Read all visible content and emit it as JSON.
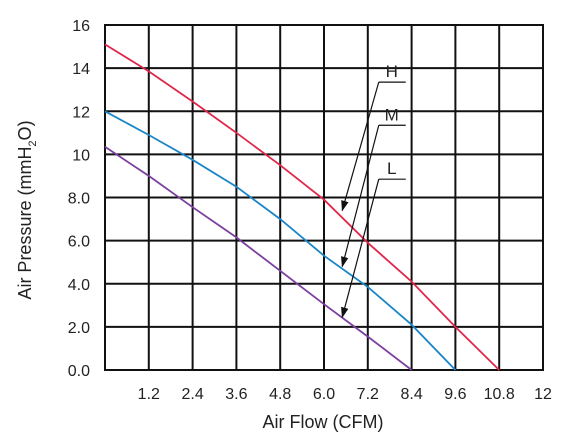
{
  "chart_data": {
    "type": "line",
    "xlabel": "Air Flow (CFM)",
    "ylabel": "Air Pressure (mmH",
    "ylabel_sub": "2",
    "ylabel_end": "O)",
    "xlim": [
      0,
      12
    ],
    "ylim": [
      0,
      16
    ],
    "grid": true,
    "x_ticks": [
      1.2,
      2.4,
      3.6,
      4.8,
      6.0,
      7.2,
      8.4,
      9.6,
      10.8,
      12
    ],
    "x_tick_labels": [
      "1.2",
      "2.4",
      "3.6",
      "4.8",
      "6.0",
      "7.2",
      "8.4",
      "9.6",
      "10.8",
      "12"
    ],
    "y_ticks": [
      0,
      2,
      4,
      6,
      8,
      10,
      12,
      14,
      16
    ],
    "y_tick_labels": [
      "0.0",
      "2.0",
      "4.0",
      "6.0",
      "8.0",
      "10",
      "12",
      "14",
      "16"
    ],
    "series": [
      {
        "name": "H",
        "color": "#e0274a",
        "points": [
          [
            0,
            15.1
          ],
          [
            1.2,
            13.85
          ],
          [
            2.4,
            12.45
          ],
          [
            3.6,
            11.0
          ],
          [
            4.8,
            9.5
          ],
          [
            6.0,
            7.9
          ],
          [
            7.2,
            5.9
          ],
          [
            8.4,
            4.1
          ],
          [
            9.6,
            2.0
          ],
          [
            10.8,
            0.0
          ]
        ],
        "label_anchor": [
          7.5,
          13.35
        ],
        "arrow_target": [
          6.5,
          7.4
        ]
      },
      {
        "name": "M",
        "color": "#1a86c8",
        "points": [
          [
            0,
            12.0
          ],
          [
            1.2,
            10.9
          ],
          [
            2.4,
            9.75
          ],
          [
            3.6,
            8.5
          ],
          [
            4.8,
            7.0
          ],
          [
            6.0,
            5.3
          ],
          [
            7.2,
            3.85
          ],
          [
            8.4,
            2.1
          ],
          [
            9.6,
            0.0
          ]
        ],
        "label_anchor": [
          7.5,
          11.35
        ],
        "arrow_target": [
          6.5,
          4.8
        ]
      },
      {
        "name": "L",
        "color": "#7b3fa0",
        "points": [
          [
            0,
            10.35
          ],
          [
            1.2,
            9.0
          ],
          [
            2.4,
            7.55
          ],
          [
            3.6,
            6.15
          ],
          [
            4.8,
            4.6
          ],
          [
            6.0,
            3.05
          ],
          [
            7.2,
            1.55
          ],
          [
            8.4,
            0.0
          ]
        ],
        "label_anchor": [
          7.5,
          8.85
        ],
        "arrow_target": [
          6.5,
          2.45
        ]
      }
    ]
  }
}
